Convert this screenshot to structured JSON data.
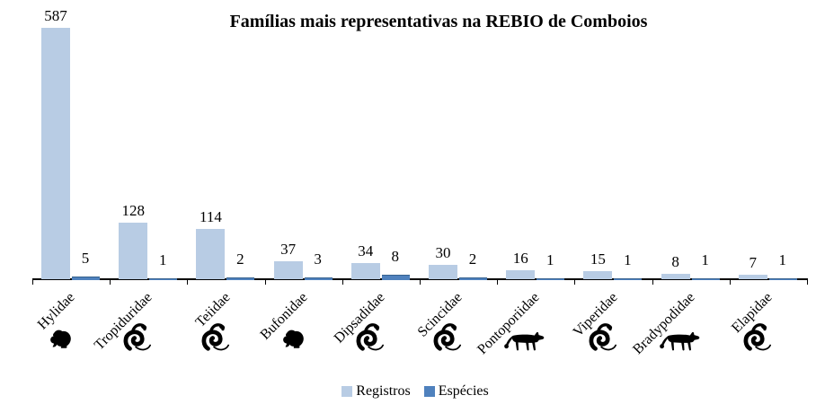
{
  "chart_data": {
    "type": "bar",
    "title": "Famílias mais representativas na REBIO de Comboios",
    "categories": [
      "Hylidae",
      "Tropiduridae",
      "Teiidae",
      "Bufonidae",
      "Dipsadidae",
      "Scincidae",
      "Pontoporiidae",
      "Viperidae",
      "Bradypodidae",
      "Elapidae"
    ],
    "category_icons": [
      "frog-icon",
      "coiled-snake-icon",
      "coiled-snake-icon",
      "frog-icon",
      "coiled-snake-icon",
      "coiled-snake-icon",
      "feline-icon",
      "coiled-snake-icon",
      "feline-icon",
      "coiled-snake-icon"
    ],
    "series": [
      {
        "name": "Registros",
        "color": "#b8cce4",
        "values": [
          587,
          128,
          114,
          37,
          34,
          30,
          16,
          15,
          8,
          7
        ]
      },
      {
        "name": "Espécies",
        "color": "#4f81bd",
        "values": [
          5,
          1,
          2,
          3,
          8,
          2,
          1,
          1,
          1,
          1
        ]
      }
    ],
    "data_labels": true,
    "legend_position": "bottom",
    "grid": false,
    "x_axis_visible": true,
    "y_axis_visible": false,
    "ylim": [
      0,
      620
    ],
    "icon_color": "#000000",
    "axis_color": "#000000"
  }
}
